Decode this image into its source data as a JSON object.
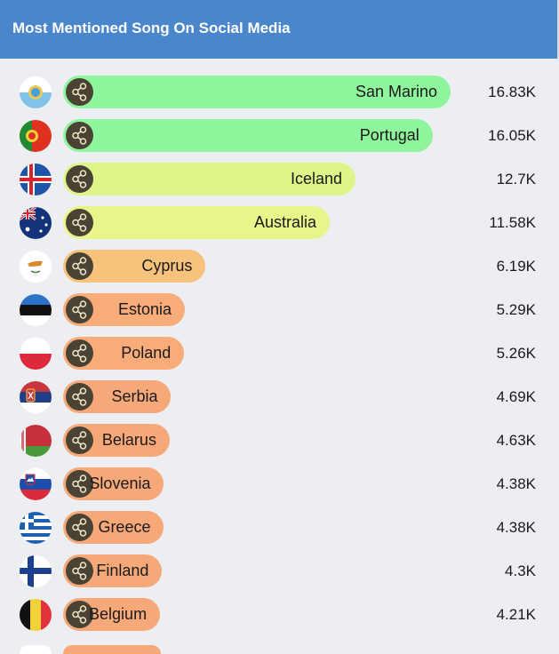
{
  "header": {
    "title": "Most Mentioned Song On Social Media"
  },
  "chart_data": {
    "type": "bar",
    "orientation": "horizontal",
    "title": "Most Mentioned Song On Social Media",
    "categories": [
      "San Marino",
      "Portugal",
      "Iceland",
      "Australia",
      "Cyprus",
      "Estonia",
      "Poland",
      "Serbia",
      "Belarus",
      "Slovenia",
      "Greece",
      "Finland",
      "Belgium"
    ],
    "values": [
      16830,
      16050,
      12700,
      11580,
      6190,
      5290,
      5260,
      4690,
      4630,
      4380,
      4380,
      4300,
      4210
    ],
    "value_labels": [
      "16.83K",
      "16.05K",
      "12.7K",
      "11.58K",
      "6.19K",
      "5.29K",
      "5.26K",
      "4.69K",
      "4.63K",
      "4.38K",
      "4.38K",
      "4.3K",
      "4.21K"
    ],
    "xlim": [
      0,
      17000
    ],
    "grid": false,
    "bar_colors": [
      "#8ef59c",
      "#8ef59c",
      "#def58a",
      "#e8f58a",
      "#f7c27c",
      "#f7ac7a",
      "#f7ac7a",
      "#f7a878",
      "#f7a878",
      "#f7a878",
      "#f7a878",
      "#f7a878",
      "#f7a878"
    ],
    "flag_icons": [
      "san-marino-flag-icon",
      "portugal-flag-icon",
      "iceland-flag-icon",
      "australia-flag-icon",
      "cyprus-flag-icon",
      "estonia-flag-icon",
      "poland-flag-icon",
      "serbia-flag-icon",
      "belarus-flag-icon",
      "slovenia-flag-icon",
      "greece-flag-icon",
      "finland-flag-icon",
      "belgium-flag-icon"
    ],
    "button_icon": "share-icon"
  },
  "colors": {
    "header_bg": "#4a86cc",
    "page_bg": "#eceef2",
    "share_button": "#4a4334"
  }
}
